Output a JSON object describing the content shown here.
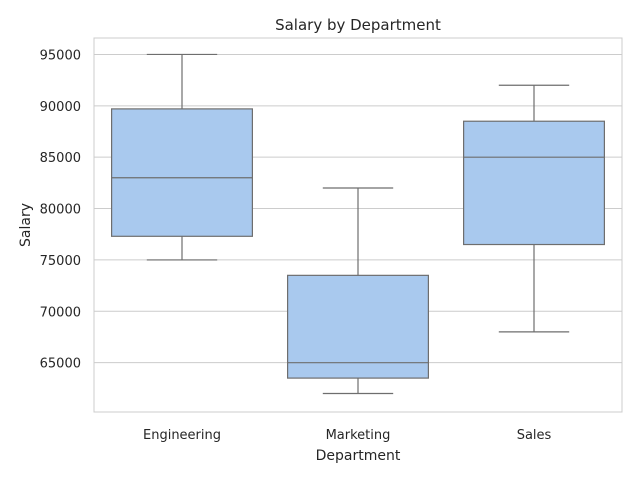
{
  "chart_data": {
    "type": "box",
    "title": "Salary by Department",
    "xlabel": "Department",
    "ylabel": "Salary",
    "categories": [
      "Engineering",
      "Marketing",
      "Sales"
    ],
    "ylim": [
      60200,
      96600
    ],
    "yticks": [
      65000,
      70000,
      75000,
      80000,
      85000,
      90000,
      95000
    ],
    "grid": "horizontal",
    "box_color": "#a9c9ee",
    "line_color": "#6e6e6e",
    "boxes": [
      {
        "category": "Engineering",
        "whisker_low": 75000,
        "q1": 77300,
        "median": 83000,
        "q3": 89700,
        "whisker_high": 95000
      },
      {
        "category": "Marketing",
        "whisker_low": 62000,
        "q1": 63500,
        "median": 65000,
        "q3": 73500,
        "whisker_high": 82000
      },
      {
        "category": "Sales",
        "whisker_low": 68000,
        "q1": 76500,
        "median": 85000,
        "q3": 88500,
        "whisker_high": 92000
      }
    ]
  }
}
